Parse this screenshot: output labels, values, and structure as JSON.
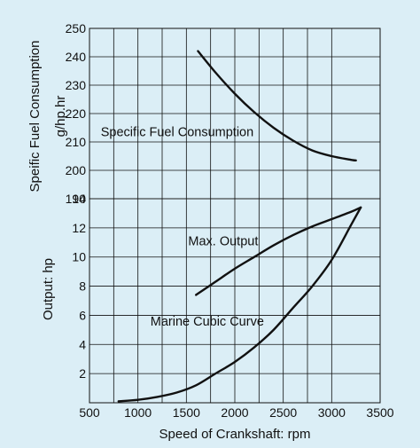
{
  "chart_data": {
    "type": "line",
    "background_color": "#dbeef6",
    "plot_background_color": "#dbeef6",
    "line_color": "#111111",
    "grid": true,
    "xlabel": "Speed of Crankshaft: rpm",
    "x_ticks": [
      "500",
      "1000",
      "1500",
      "2000",
      "2500",
      "3000",
      "3500"
    ],
    "xlim": [
      500,
      3500
    ],
    "panels": [
      {
        "name": "upper",
        "ylabel_lines": [
          "Speific Fuel Consumption",
          "g/hp.hr"
        ],
        "y_ticks": [
          "250",
          "240",
          "230",
          "220",
          "210",
          "200",
          "190"
        ],
        "ylim": [
          190,
          250
        ]
      },
      {
        "name": "lower",
        "ylabel_lines": [
          "Output: hp"
        ],
        "y_ticks": [
          "14",
          "12",
          "10",
          "8",
          "6",
          "4",
          "2"
        ],
        "ylim": [
          0,
          14
        ]
      }
    ],
    "series": [
      {
        "name": "Specific Fuel Consumption",
        "panel": "upper",
        "x": [
          1620,
          1800,
          2000,
          2200,
          2400,
          2600,
          2800,
          3000,
          3200,
          3250
        ],
        "y": [
          242,
          234.5,
          227,
          220.5,
          215,
          210.5,
          207,
          205,
          203.7,
          203.5
        ]
      },
      {
        "name": "Max. Output",
        "panel": "lower",
        "x": [
          1600,
          1800,
          2000,
          2200,
          2400,
          2600,
          2800,
          3000,
          3200,
          3300
        ],
        "y": [
          7.4,
          8.3,
          9.2,
          10.0,
          10.8,
          11.5,
          12.1,
          12.6,
          13.1,
          13.4
        ]
      },
      {
        "name": "Marine Cubic Curve",
        "panel": "lower",
        "x": [
          800,
          1000,
          1200,
          1400,
          1600,
          1800,
          2000,
          2200,
          2400,
          2600,
          2800,
          3000,
          3200,
          3300
        ],
        "y": [
          0.1,
          0.2,
          0.4,
          0.7,
          1.2,
          2.0,
          2.8,
          3.8,
          5.0,
          6.5,
          8.0,
          9.8,
          12.2,
          13.4
        ]
      }
    ],
    "annotations": [
      {
        "text": "Specific Fuel Consumption",
        "panel": "upper",
        "x": 1405,
        "y": 212
      },
      {
        "text": "Max. Output",
        "panel": "lower",
        "x": 1880,
        "y": 10.8
      },
      {
        "text": "Marine Cubic Curve",
        "panel": "lower",
        "x": 1715,
        "y": 5.3
      }
    ]
  }
}
